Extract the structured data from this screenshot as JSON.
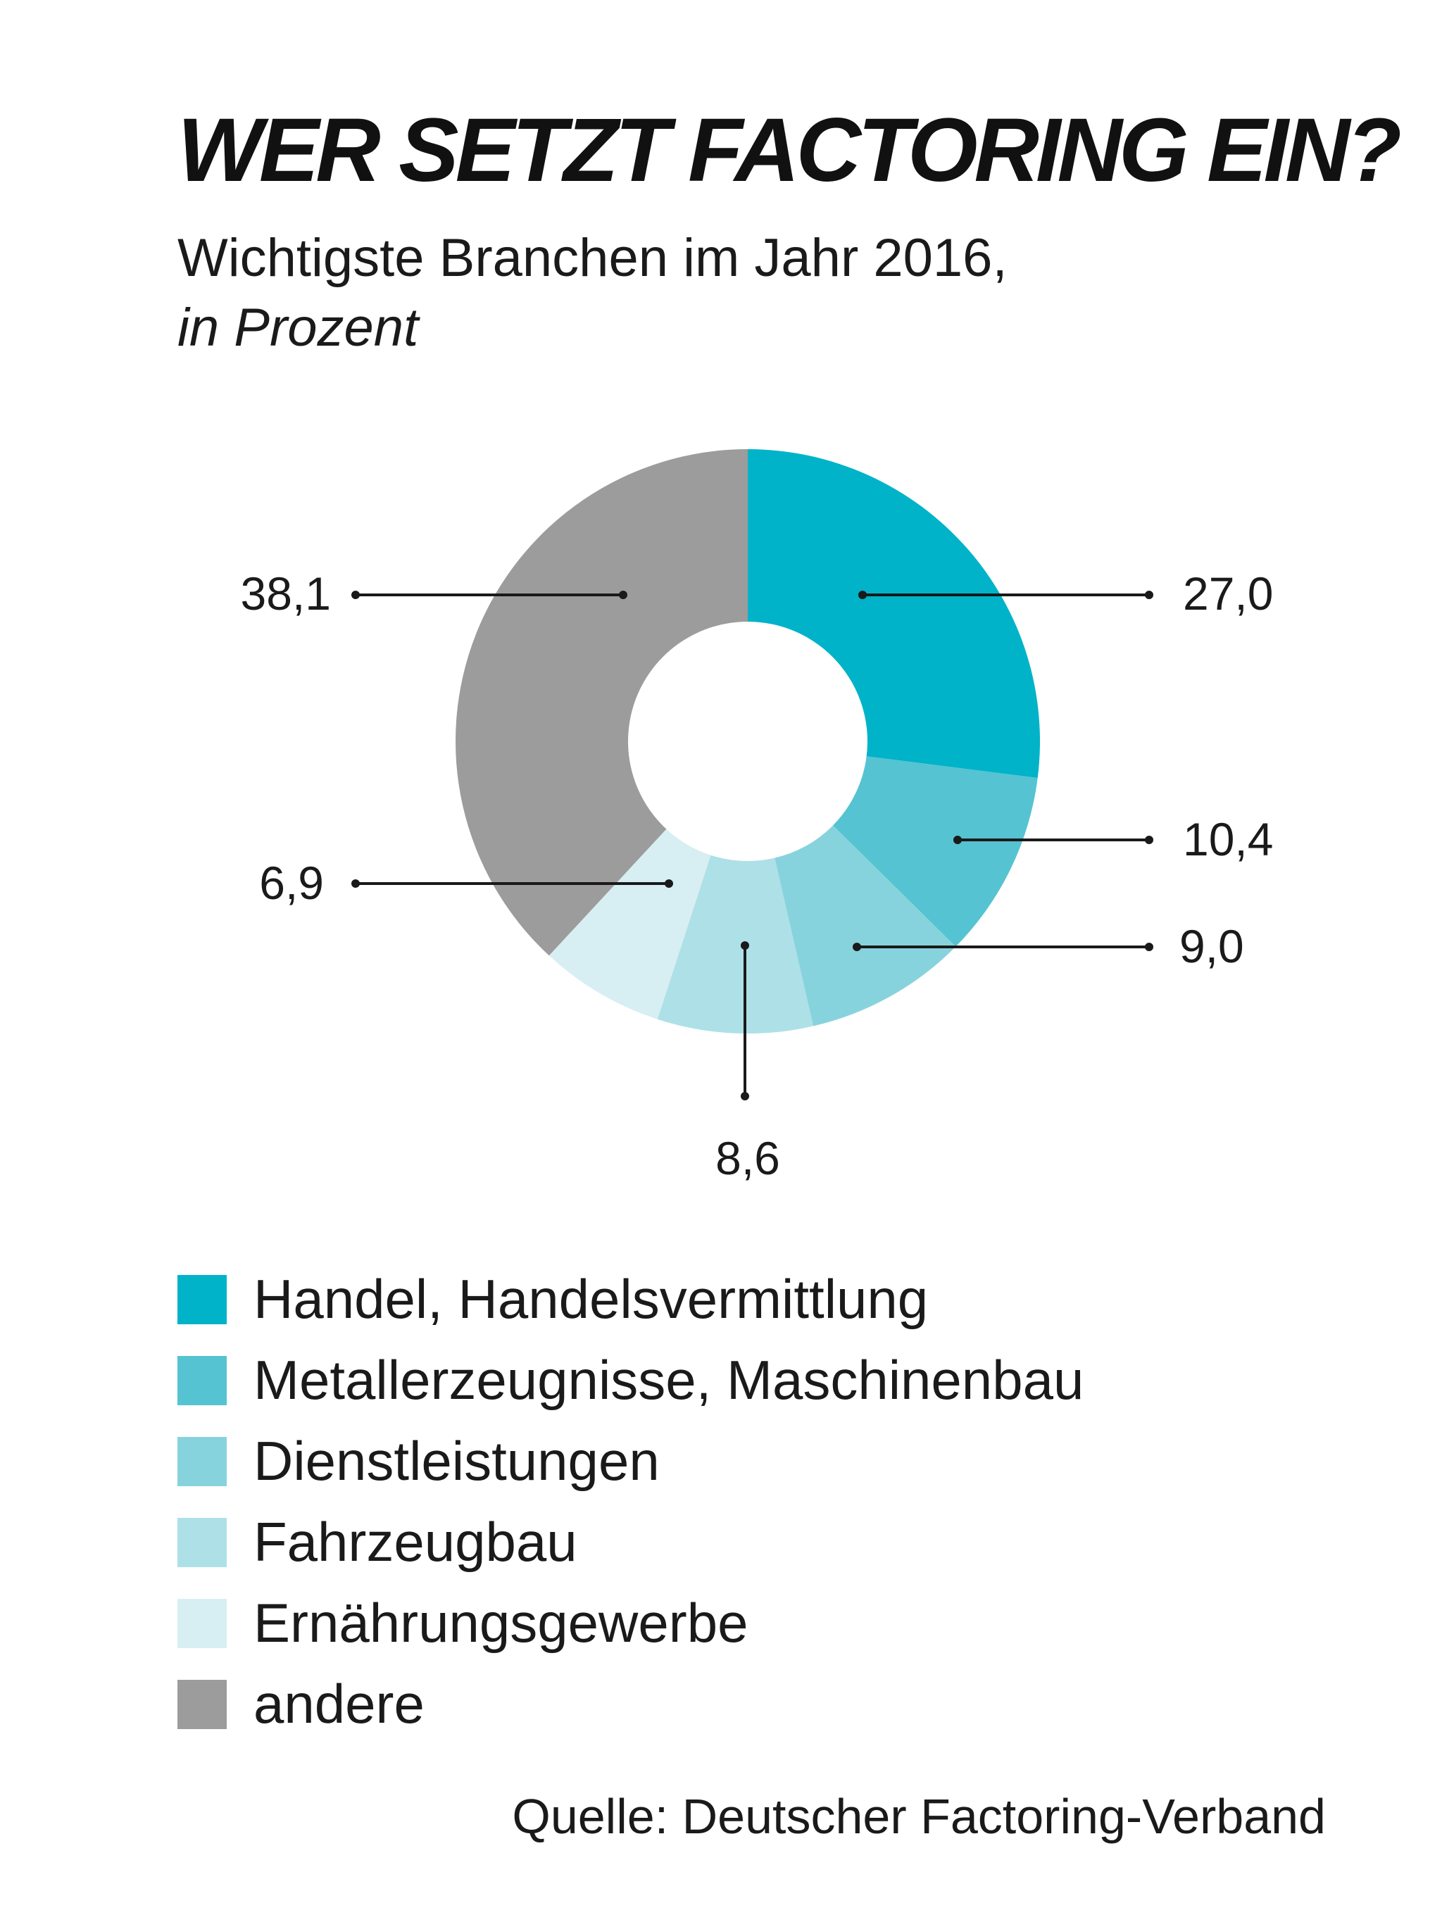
{
  "chart_data": {
    "type": "pie",
    "title": "WER SETZT FACTORING EIN?",
    "subtitle": "Wichtigste Branchen im Jahr 2016,",
    "unit_note": "in Prozent",
    "slices": [
      {
        "name": "Handel, Handelsvermittlung",
        "value": 27.0,
        "label": "27,0",
        "color": "#00b3c9"
      },
      {
        "name": "Metallerzeugnisse, Maschinenbau",
        "value": 10.4,
        "label": "10,4",
        "color": "#55c3d2"
      },
      {
        "name": "Dienstleistungen",
        "value": 9.0,
        "label": "9,0",
        "color": "#87d3dd"
      },
      {
        "name": "Fahrzeugbau",
        "value": 8.6,
        "label": "8,6",
        "color": "#aee0e7"
      },
      {
        "name": "Ernährungsgewerbe",
        "value": 6.9,
        "label": "6,9",
        "color": "#d7eff2"
      },
      {
        "name": "andere",
        "value": 38.1,
        "label": "38,1",
        "color": "#9c9c9c"
      }
    ],
    "legend_position": "bottom",
    "source": "Quelle: Deutscher Factoring-Verband"
  }
}
